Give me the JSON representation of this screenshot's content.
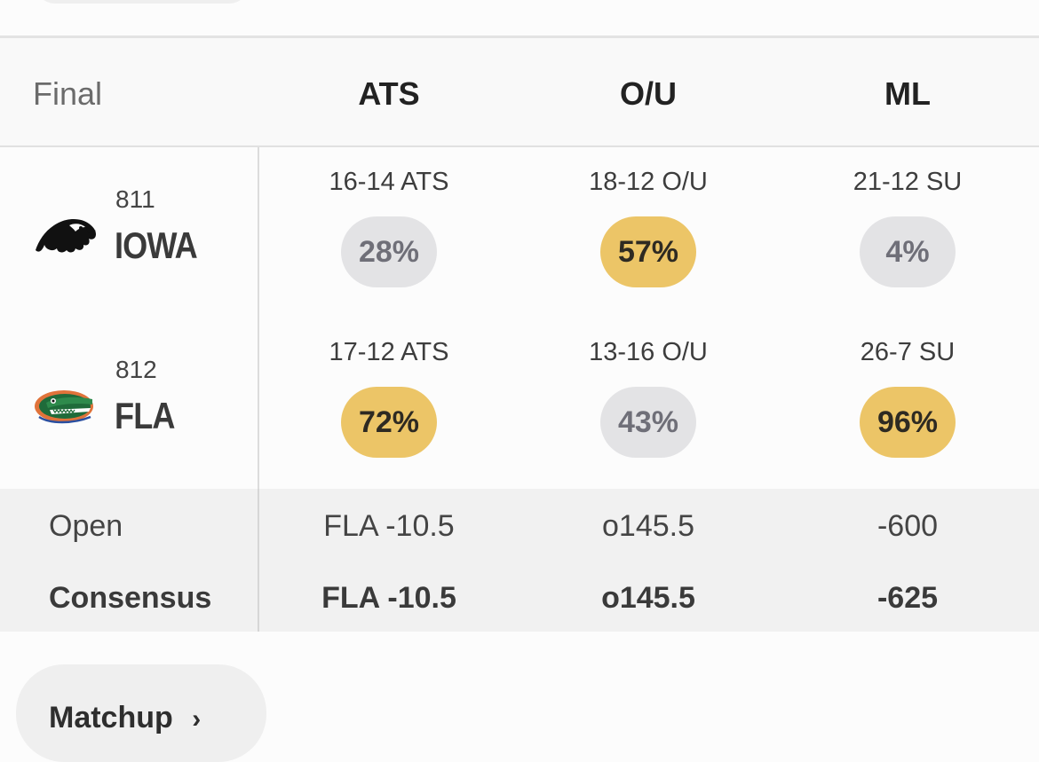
{
  "header": {
    "status": "Final",
    "columns": [
      "ATS",
      "O/U",
      "ML"
    ]
  },
  "teams": [
    {
      "number": "811",
      "abbr": "IOWA",
      "logo_icon": "iowa-hawkeye-logo-icon",
      "ats": {
        "record": "16-14 ATS",
        "pct": "28%",
        "highlight": false
      },
      "ou": {
        "record": "18-12 O/U",
        "pct": "57%",
        "highlight": true
      },
      "ml": {
        "record": "21-12 SU",
        "pct": "4%",
        "highlight": false
      }
    },
    {
      "number": "812",
      "abbr": "FLA",
      "logo_icon": "florida-gator-logo-icon",
      "ats": {
        "record": "17-12 ATS",
        "pct": "72%",
        "highlight": true
      },
      "ou": {
        "record": "13-16 O/U",
        "pct": "43%",
        "highlight": false
      },
      "ml": {
        "record": "26-7 SU",
        "pct": "96%",
        "highlight": true
      }
    }
  ],
  "odds": {
    "open": {
      "label": "Open",
      "ats": "FLA -10.5",
      "ou": "o145.5",
      "ml": "-600"
    },
    "consensus": {
      "label": "Consensus",
      "ats": "FLA -10.5",
      "ou": "o145.5",
      "ml": "-625"
    }
  },
  "matchup_button": {
    "label": "Matchup",
    "icon": "chevron-right-icon"
  },
  "colors": {
    "highlight_pill": "#ecc567",
    "neutral_pill": "#e3e3e5",
    "odds_band": "#f1f1f1"
  }
}
